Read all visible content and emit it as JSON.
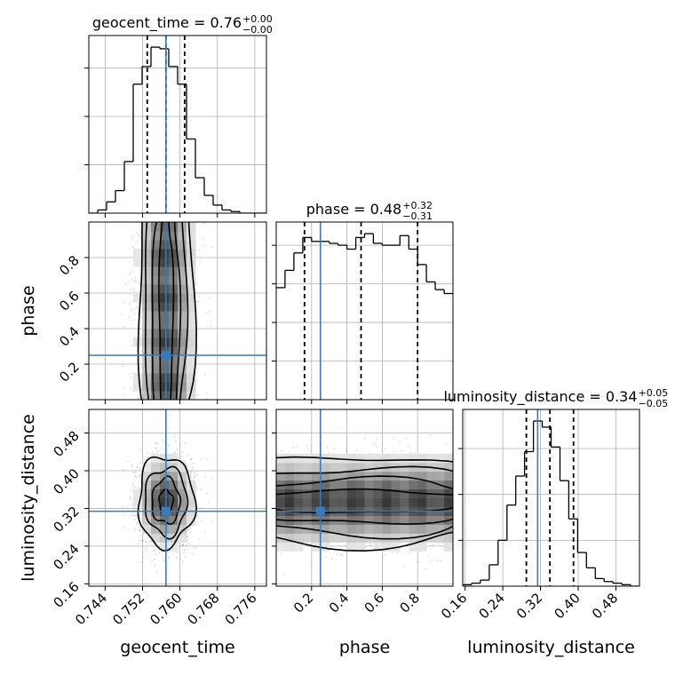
{
  "figure": {
    "type": "corner-plot"
  },
  "chart_data": {
    "type": "corner",
    "parameters": [
      "geocent_time",
      "phase",
      "luminosity_distance"
    ],
    "axis_labels": [
      "geocent_time",
      "phase",
      "luminosity_distance"
    ],
    "ranges": [
      [
        0.7405,
        0.7785
      ],
      [
        0.0,
        1.0
      ],
      [
        0.155,
        0.53
      ]
    ],
    "truths": [
      0.757,
      0.25,
      0.314
    ],
    "truth_color": "#3a7ab8",
    "quantiles": [
      [
        0.753,
        0.757,
        0.761
      ],
      [
        0.16,
        0.48,
        0.8
      ],
      [
        0.29,
        0.34,
        0.39
      ]
    ],
    "titles": [
      {
        "main": "geocent_time = 0.76",
        "upper": "+0.00",
        "lower": "−0.00"
      },
      {
        "main": "phase = 0.48",
        "upper": "+0.32",
        "lower": "−0.31"
      },
      {
        "main": "luminosity_distance = 0.34",
        "upper": "+0.05",
        "lower": "−0.05"
      }
    ],
    "ticks": [
      {
        "values": [
          0.744,
          0.752,
          0.76,
          0.768,
          0.776
        ],
        "labels": [
          "0.744",
          "0.752",
          "0.760",
          "0.768",
          "0.776"
        ]
      },
      {
        "values": [
          0.2,
          0.4,
          0.6,
          0.8
        ],
        "labels": [
          "0.2",
          "0.4",
          "0.6",
          "0.8"
        ]
      },
      {
        "values": [
          0.16,
          0.24,
          0.32,
          0.4,
          0.48
        ],
        "labels": [
          "0.16",
          "0.24",
          "0.32",
          "0.40",
          "0.48"
        ]
      }
    ],
    "histograms": [
      {
        "param": "geocent_time",
        "edges_range": [
          0.7405,
          0.7785
        ],
        "bins": 20,
        "counts": [
          0,
          2,
          7,
          14,
          32,
          80,
          91,
          103,
          102,
          91,
          80,
          46,
          22,
          11,
          5,
          2,
          1,
          0,
          0,
          0
        ]
      },
      {
        "param": "phase",
        "edges_range": [
          0.0,
          1.0
        ],
        "bins": 20,
        "counts": [
          58,
          67,
          76,
          84,
          82,
          82,
          81,
          80,
          78,
          84,
          86,
          81,
          80,
          80,
          85,
          78,
          70,
          61,
          57,
          55
        ]
      },
      {
        "param": "luminosity_distance",
        "edges_range": [
          0.155,
          0.53
        ],
        "bins": 20,
        "counts": [
          1,
          2,
          4,
          14,
          30,
          53,
          72,
          88,
          108,
          104,
          91,
          69,
          44,
          22,
          12,
          5,
          3,
          2,
          1,
          0
        ]
      }
    ],
    "density_2d": [
      {
        "x": "geocent_time",
        "y": "phase",
        "cx": 0.757,
        "cy": 0.5,
        "sx": 0.003,
        "sy": 0.3,
        "pattern": "uniform"
      },
      {
        "x": "geocent_time",
        "y": "luminosity_distance",
        "cx": 0.757,
        "cy": 0.335,
        "sx": 0.003,
        "sy": 0.048,
        "pattern": "gaussian"
      },
      {
        "x": "phase",
        "y": "luminosity_distance",
        "cx": 0.5,
        "cy": 0.335,
        "sx": 0.3,
        "sy": 0.048,
        "pattern": "uniform"
      }
    ],
    "grid": true
  }
}
